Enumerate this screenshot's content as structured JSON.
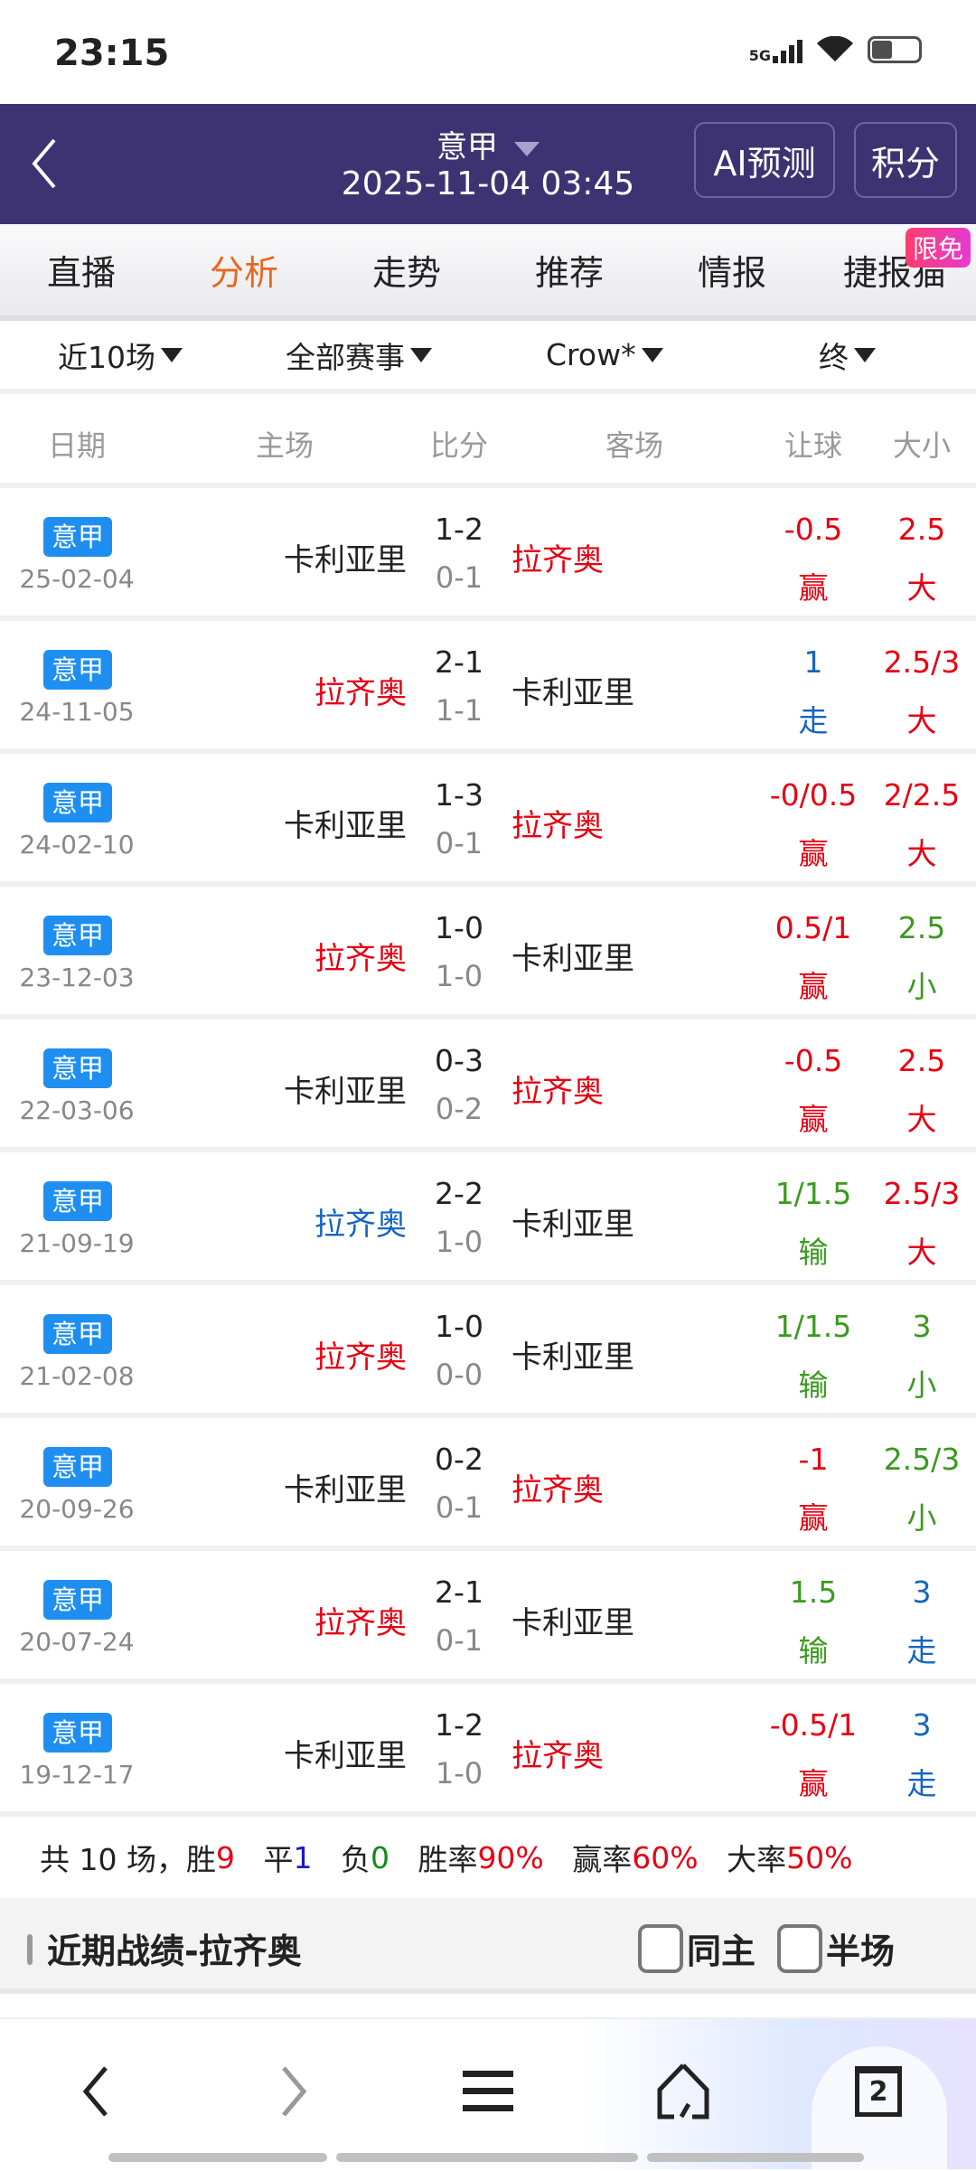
{
  "status_bar": {
    "time": "23:15",
    "network": "5G"
  },
  "header": {
    "league": "意甲",
    "datetime": "2025-11-04 03:45",
    "ai_button": "AI预测",
    "points_button": "积分"
  },
  "tabs": [
    {
      "label": "直播"
    },
    {
      "label": "分析",
      "active": true
    },
    {
      "label": "走势"
    },
    {
      "label": "推荐"
    },
    {
      "label": "情报"
    },
    {
      "label": "捷报猫",
      "badge": "限免"
    }
  ],
  "filters": {
    "range": "近10场",
    "competition": "全部赛事",
    "company": "Crow*",
    "odds_type": "终"
  },
  "columns": {
    "date": "日期",
    "home": "主场",
    "score": "比分",
    "away": "客场",
    "handicap": "让球",
    "over_under": "大小"
  },
  "colors": {
    "red": "#e60012",
    "green": "#3a9a1e",
    "blue": "#1565c0",
    "black": "#222222",
    "tag_blue": "#1e8ff0",
    "header": "#3e3372",
    "active_tab": "#e5681e"
  },
  "rows": [
    {
      "league": "意甲",
      "date": "25-02-04",
      "home": "卡利亚里",
      "home_color": "black",
      "ft": "1-2",
      "ht": "0-1",
      "away": "拉齐奥",
      "away_color": "red",
      "hcp": "-0.5",
      "hcp_result": "赢",
      "hcp_color": "red",
      "ou": "2.5",
      "ou_result": "大",
      "ou_color": "red"
    },
    {
      "league": "意甲",
      "date": "24-11-05",
      "home": "拉齐奥",
      "home_color": "red",
      "ft": "2-1",
      "ht": "1-1",
      "away": "卡利亚里",
      "away_color": "black",
      "hcp": "1",
      "hcp_result": "走",
      "hcp_color": "blue",
      "ou": "2.5/3",
      "ou_result": "大",
      "ou_color": "red"
    },
    {
      "league": "意甲",
      "date": "24-02-10",
      "home": "卡利亚里",
      "home_color": "black",
      "ft": "1-3",
      "ht": "0-1",
      "away": "拉齐奥",
      "away_color": "red",
      "hcp": "-0/0.5",
      "hcp_result": "赢",
      "hcp_color": "red",
      "ou": "2/2.5",
      "ou_result": "大",
      "ou_color": "red"
    },
    {
      "league": "意甲",
      "date": "23-12-03",
      "home": "拉齐奥",
      "home_color": "red",
      "ft": "1-0",
      "ht": "1-0",
      "away": "卡利亚里",
      "away_color": "black",
      "hcp": "0.5/1",
      "hcp_result": "赢",
      "hcp_color": "red",
      "ou": "2.5",
      "ou_result": "小",
      "ou_color": "green"
    },
    {
      "league": "意甲",
      "date": "22-03-06",
      "home": "卡利亚里",
      "home_color": "black",
      "ft": "0-3",
      "ht": "0-2",
      "away": "拉齐奥",
      "away_color": "red",
      "hcp": "-0.5",
      "hcp_result": "赢",
      "hcp_color": "red",
      "ou": "2.5",
      "ou_result": "大",
      "ou_color": "red"
    },
    {
      "league": "意甲",
      "date": "21-09-19",
      "home": "拉齐奥",
      "home_color": "blue",
      "ft": "2-2",
      "ht": "1-0",
      "away": "卡利亚里",
      "away_color": "black",
      "hcp": "1/1.5",
      "hcp_result": "输",
      "hcp_color": "green",
      "ou": "2.5/3",
      "ou_result": "大",
      "ou_color": "red"
    },
    {
      "league": "意甲",
      "date": "21-02-08",
      "home": "拉齐奥",
      "home_color": "red",
      "ft": "1-0",
      "ht": "0-0",
      "away": "卡利亚里",
      "away_color": "black",
      "hcp": "1/1.5",
      "hcp_result": "输",
      "hcp_color": "green",
      "ou": "3",
      "ou_result": "小",
      "ou_color": "green"
    },
    {
      "league": "意甲",
      "date": "20-09-26",
      "home": "卡利亚里",
      "home_color": "black",
      "ft": "0-2",
      "ht": "0-1",
      "away": "拉齐奥",
      "away_color": "red",
      "hcp": "-1",
      "hcp_result": "赢",
      "hcp_color": "red",
      "ou": "2.5/3",
      "ou_result": "小",
      "ou_color": "green"
    },
    {
      "league": "意甲",
      "date": "20-07-24",
      "home": "拉齐奥",
      "home_color": "red",
      "ft": "2-1",
      "ht": "0-1",
      "away": "卡利亚里",
      "away_color": "black",
      "hcp": "1.5",
      "hcp_result": "输",
      "hcp_color": "green",
      "ou": "3",
      "ou_result": "走",
      "ou_color": "blue"
    },
    {
      "league": "意甲",
      "date": "19-12-17",
      "home": "卡利亚里",
      "home_color": "black",
      "ft": "1-2",
      "ht": "1-0",
      "away": "拉齐奥",
      "away_color": "red",
      "hcp": "-0.5/1",
      "hcp_result": "赢",
      "hcp_color": "red",
      "ou": "3",
      "ou_result": "走",
      "ou_color": "blue"
    }
  ],
  "summary": {
    "prefix": "共 10 场，",
    "win_label": "胜",
    "win": "9",
    "draw_label": "平",
    "draw": "1",
    "loss_label": "负",
    "loss": "0",
    "win_rate_label": "胜率",
    "win_rate": "90%",
    "cover_rate_label": "赢率",
    "cover_rate": "60%",
    "over_rate_label": "大率",
    "over_rate": "50%"
  },
  "section": {
    "title": "近期战绩-拉齐奥",
    "same_home": "同主",
    "half_time": "半场"
  },
  "bottom_nav": {
    "tab_count": "2"
  }
}
